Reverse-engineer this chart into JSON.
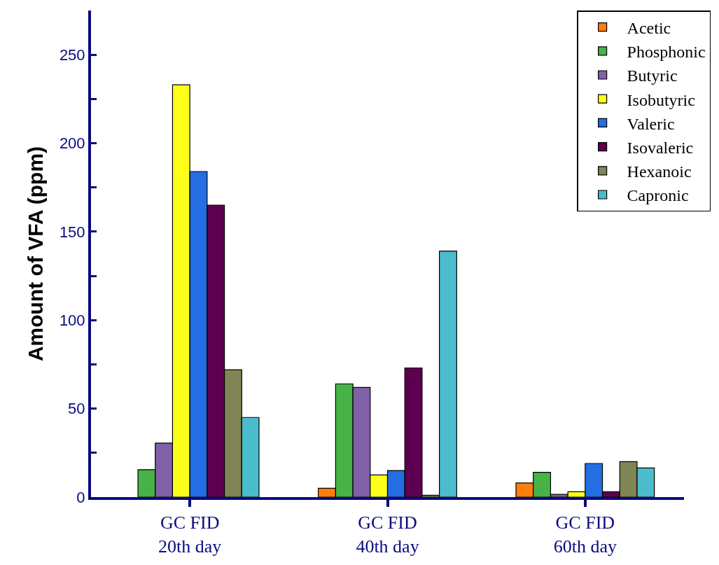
{
  "chart_data": {
    "type": "bar",
    "ylabel": "Amount of VFA (ppm)",
    "categories": [
      "GC FID\n20th day",
      "GC FID\n40th day",
      "GC FID\n60th day"
    ],
    "series": [
      {
        "name": "Acetic",
        "color": "#ff7f0e",
        "values": [
          null,
          5,
          8
        ]
      },
      {
        "name": "Phosphonic",
        "color": "#47b347",
        "values": [
          15.5,
          64,
          14
        ]
      },
      {
        "name": "Butyric",
        "color": "#8060a8",
        "values": [
          30.5,
          62,
          1.5
        ]
      },
      {
        "name": "Isobutyric",
        "color": "#ffff1a",
        "values": [
          233,
          12.5,
          3
        ]
      },
      {
        "name": "Valeric",
        "color": "#246ee4",
        "values": [
          184,
          15,
          19
        ]
      },
      {
        "name": "Isovaleric",
        "color": "#5e0050",
        "values": [
          165,
          73,
          3
        ]
      },
      {
        "name": "Hexanoic",
        "color": "#808555",
        "values": [
          72,
          1,
          20
        ]
      },
      {
        "name": "Capronic",
        "color": "#4bbccc",
        "values": [
          45,
          139,
          16.5
        ]
      }
    ],
    "ylim": [
      0,
      275
    ],
    "yticks": [
      0,
      {
        "value": 25,
        "label": null
      },
      50,
      {
        "value": 75,
        "label": null
      },
      100,
      {
        "value": 125,
        "label": null
      },
      150,
      {
        "value": 175,
        "label": null
      },
      200,
      {
        "value": 225,
        "label": null
      },
      250
    ],
    "legend": "top right"
  }
}
